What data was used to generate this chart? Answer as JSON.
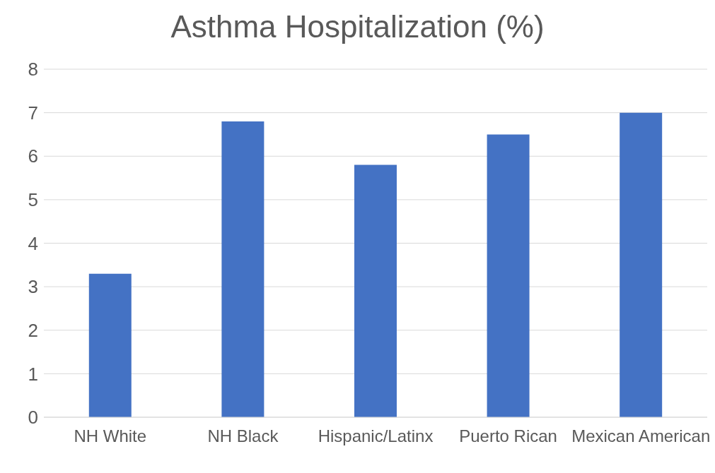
{
  "chart_data": {
    "type": "bar",
    "title": "Asthma Hospitalization (%)",
    "categories": [
      "NH White",
      "NH Black",
      "Hispanic/Latinx",
      "Puerto Rican",
      "Mexican American"
    ],
    "values": [
      3.3,
      6.8,
      5.8,
      6.5,
      7.0
    ],
    "color": "#4472c4",
    "ylim": [
      0,
      8
    ],
    "yticks": [
      0,
      1,
      2,
      3,
      4,
      5,
      6,
      7,
      8
    ],
    "grid": "y"
  }
}
